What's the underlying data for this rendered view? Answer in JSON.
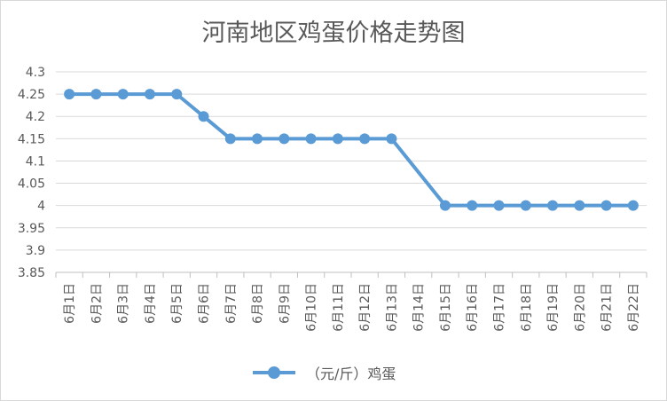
{
  "chart_data": {
    "type": "line",
    "title": "河南地区鸡蛋价格走势图",
    "categories": [
      "6月1日",
      "6月2日",
      "6月3日",
      "6月4日",
      "6月5日",
      "6月6日",
      "6月7日",
      "6月8日",
      "6月9日",
      "6月10日",
      "6月11日",
      "6月12日",
      "6月13日",
      "6月14日",
      "6月15日",
      "6月16日",
      "6月17日",
      "6月18日",
      "6月19日",
      "6月20日",
      "6月21日",
      "6月22日"
    ],
    "series": [
      {
        "name": "（元/斤）鸡蛋",
        "values": [
          4.25,
          4.25,
          4.25,
          4.25,
          4.25,
          4.2,
          4.15,
          4.15,
          4.15,
          4.15,
          4.15,
          4.15,
          4.15,
          null,
          4.0,
          4.0,
          4.0,
          4.0,
          4.0,
          4.0,
          4.0,
          4.0
        ],
        "color": "#5b9bd5"
      }
    ],
    "ylim": [
      3.85,
      4.3
    ],
    "yticks": [
      3.85,
      3.9,
      3.95,
      4,
      4.05,
      4.1,
      4.15,
      4.2,
      4.25,
      4.3
    ],
    "ytick_labels": [
      "3.85",
      "3.9",
      "3.95",
      "4",
      "4.05",
      "4.1",
      "4.15",
      "4.2",
      "4.25",
      "4.3"
    ],
    "grid": true,
    "legend_position": "bottom",
    "gap_handling": "connect"
  }
}
